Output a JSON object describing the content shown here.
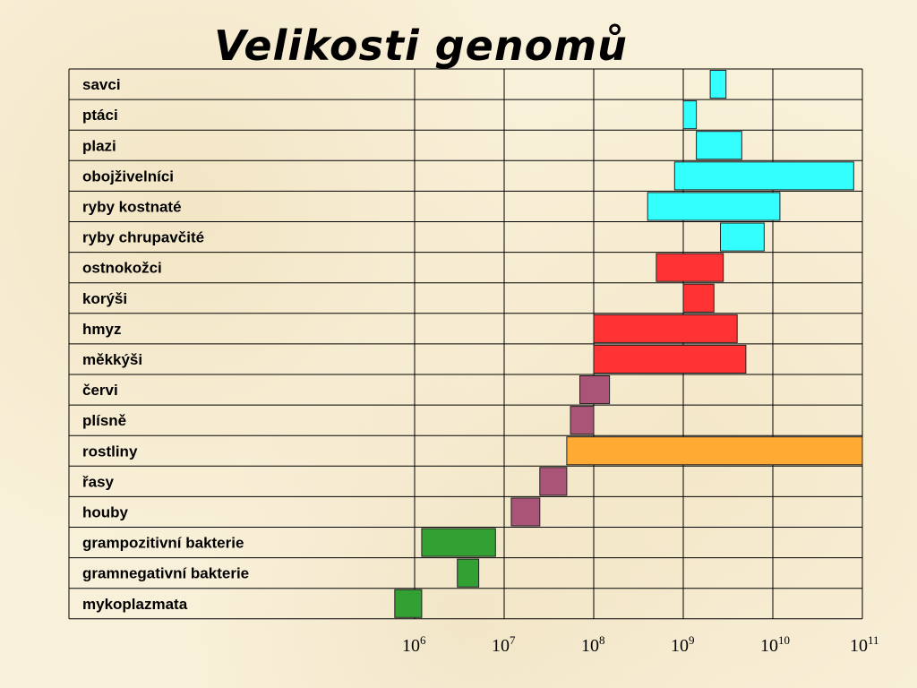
{
  "chart_data": {
    "type": "bar",
    "title": "Velikosti genomů",
    "x_scale": "log10",
    "xlim": [
      1000000,
      100000000000
    ],
    "x_ticks": [
      {
        "base": "10",
        "exp": "6"
      },
      {
        "base": "10",
        "exp": "7"
      },
      {
        "base": "10",
        "exp": "8"
      },
      {
        "base": "10",
        "exp": "9"
      },
      {
        "base": "10",
        "exp": "10"
      },
      {
        "base": "10",
        "exp": "11"
      }
    ],
    "grid": true,
    "categories": [
      "savci",
      "ptáci",
      "plazi",
      "obojživelníci",
      "ryby kostnaté",
      "ryby chrupavčité",
      "ostnokožci",
      "korýši",
      "hmyz",
      "měkkýši",
      "červi",
      "plísně",
      "rostliny",
      "řasy",
      "houby",
      "grampozitivní bakterie",
      "gramnegativní bakterie",
      "mykoplazmata"
    ],
    "ranges": [
      {
        "min": 2000000000,
        "max": 3000000000,
        "color": "#33ffff"
      },
      {
        "min": 1000000000,
        "max": 1400000000,
        "color": "#33ffff"
      },
      {
        "min": 1400000000,
        "max": 4500000000,
        "color": "#33ffff"
      },
      {
        "min": 800000000,
        "max": 80000000000,
        "color": "#33ffff"
      },
      {
        "min": 400000000,
        "max": 12000000000,
        "color": "#33ffff"
      },
      {
        "min": 2600000000,
        "max": 8000000000,
        "color": "#33ffff"
      },
      {
        "min": 500000000,
        "max": 2800000000,
        "color": "#ff3333"
      },
      {
        "min": 1000000000,
        "max": 2200000000,
        "color": "#ff3333"
      },
      {
        "min": 100000000,
        "max": 4000000000,
        "color": "#ff3333"
      },
      {
        "min": 100000000,
        "max": 5000000000,
        "color": "#ff3333"
      },
      {
        "min": 70000000,
        "max": 150000000,
        "color": "#aa5577"
      },
      {
        "min": 55000000,
        "max": 100000000,
        "color": "#aa5577"
      },
      {
        "min": 50000000,
        "max": 100000000000,
        "color": "#ffaa33"
      },
      {
        "min": 25000000,
        "max": 50000000,
        "color": "#aa5577"
      },
      {
        "min": 12000000,
        "max": 25000000,
        "color": "#aa5577"
      },
      {
        "min": 1200000,
        "max": 8000000,
        "color": "#33a033"
      },
      {
        "min": 3000000,
        "max": 5200000,
        "color": "#33a033"
      },
      {
        "min": 600000,
        "max": 1200000,
        "color": "#33a033"
      }
    ]
  }
}
